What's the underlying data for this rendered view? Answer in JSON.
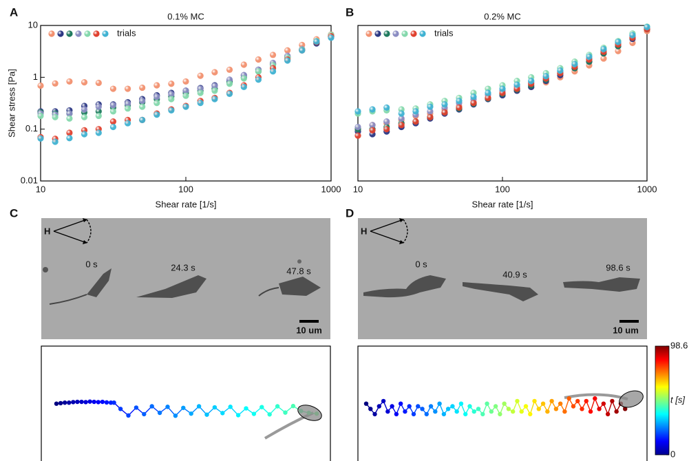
{
  "chart_data": [
    {
      "type": "scatter",
      "panel": "A",
      "title": "0.1% MC",
      "xlabel": "Shear rate [1/s]",
      "ylabel": "Shear stress [Pa]",
      "xscale": "log",
      "yscale": "log",
      "xlim": [
        10,
        1000
      ],
      "ylim": [
        0.01,
        10
      ],
      "xticks": [
        10,
        100,
        1000
      ],
      "yticks": [
        0.01,
        0.1,
        1,
        10
      ],
      "legend_label": "trials",
      "x": [
        10,
        12.6,
        15.8,
        20,
        25.1,
        31.6,
        39.8,
        50.1,
        63.1,
        79.4,
        100,
        126,
        158,
        200,
        251,
        316,
        398,
        501,
        631,
        794,
        1000
      ],
      "series": [
        {
          "color": "#f2906e",
          "values": [
            0.69,
            0.76,
            0.83,
            0.8,
            0.78,
            0.6,
            0.6,
            0.63,
            0.7,
            0.75,
            0.83,
            1.07,
            1.25,
            1.4,
            1.75,
            2.2,
            2.7,
            3.3,
            4.2,
            5.4,
            6.7
          ]
        },
        {
          "color": "#2b3783",
          "values": [
            0.22,
            0.22,
            0.23,
            0.28,
            0.3,
            0.3,
            0.33,
            0.38,
            0.45,
            0.5,
            0.55,
            0.62,
            0.7,
            0.85,
            1.1,
            1.4,
            1.8,
            2.5,
            3.4,
            4.5,
            6
          ]
        },
        {
          "color": "#1f7a5e",
          "values": [
            0.21,
            0.2,
            0.2,
            0.21,
            0.22,
            0.26,
            0.29,
            0.33,
            0.38,
            0.43,
            0.5,
            0.55,
            0.6,
            0.8,
            1.0,
            1.3,
            1.8,
            2.4,
            3.4,
            4.8,
            6.2
          ]
        },
        {
          "color": "#8a8cc2",
          "values": [
            0.2,
            0.19,
            0.2,
            0.24,
            0.27,
            0.29,
            0.31,
            0.35,
            0.42,
            0.47,
            0.55,
            0.6,
            0.68,
            0.9,
            1.1,
            1.4,
            1.9,
            2.6,
            3.5,
            4.9,
            6
          ]
        },
        {
          "color": "#84d8ac",
          "values": [
            0.18,
            0.17,
            0.16,
            0.17,
            0.18,
            0.22,
            0.25,
            0.27,
            0.32,
            0.38,
            0.44,
            0.5,
            0.55,
            0.75,
            0.95,
            1.3,
            1.7,
            2.4,
            3.4,
            5,
            6.6
          ]
        },
        {
          "color": "#e0402e",
          "values": [
            0.07,
            0.065,
            0.085,
            0.095,
            0.1,
            0.14,
            0.15,
            0.15,
            0.2,
            0.24,
            0.28,
            0.35,
            0.4,
            0.5,
            0.7,
            1.0,
            1.5,
            2.2,
            3.3,
            4.8,
            6.2
          ]
        },
        {
          "color": "#3fb2d2",
          "values": [
            0.066,
            0.057,
            0.067,
            0.08,
            0.085,
            0.11,
            0.13,
            0.15,
            0.19,
            0.23,
            0.27,
            0.32,
            0.38,
            0.48,
            0.65,
            0.9,
            1.3,
            2.1,
            3.3,
            4.9,
            5.8
          ]
        }
      ]
    },
    {
      "type": "scatter",
      "panel": "B",
      "title": "0.2% MC",
      "xlabel": "Shear rate [1/s]",
      "xscale": "log",
      "yscale": "log",
      "xlim": [
        10,
        1000
      ],
      "ylim": [
        0.01,
        10
      ],
      "xticks": [
        10,
        100,
        1000
      ],
      "legend_label": "trials",
      "x": [
        10,
        12.6,
        15.8,
        20,
        25.1,
        31.6,
        39.8,
        50.1,
        63.1,
        79.4,
        100,
        126,
        158,
        200,
        251,
        316,
        398,
        501,
        631,
        794,
        1000
      ],
      "series": [
        {
          "color": "#f2906e",
          "values": [
            0.1,
            0.12,
            0.13,
            0.15,
            0.18,
            0.2,
            0.24,
            0.28,
            0.33,
            0.4,
            0.47,
            0.55,
            0.65,
            0.8,
            1.0,
            1.3,
            1.7,
            2.3,
            3.2,
            4.6,
            7.8
          ]
        },
        {
          "color": "#2b3783",
          "values": [
            0.09,
            0.08,
            0.09,
            0.11,
            0.13,
            0.16,
            0.2,
            0.24,
            0.3,
            0.38,
            0.45,
            0.55,
            0.65,
            0.85,
            1.1,
            1.5,
            2.0,
            2.9,
            4.0,
            5.5,
            8.5
          ]
        },
        {
          "color": "#1f7a5e",
          "values": [
            0.1,
            0.1,
            0.11,
            0.13,
            0.14,
            0.17,
            0.21,
            0.25,
            0.31,
            0.39,
            0.48,
            0.58,
            0.7,
            0.9,
            1.2,
            1.5,
            2.0,
            2.9,
            4.0,
            5.8,
            8.5
          ]
        },
        {
          "color": "#8a8cc2",
          "values": [
            0.11,
            0.12,
            0.14,
            0.16,
            0.19,
            0.22,
            0.26,
            0.32,
            0.38,
            0.46,
            0.55,
            0.66,
            0.8,
            1.0,
            1.3,
            1.7,
            2.3,
            3.3,
            4.6,
            6.2,
            8.8
          ]
        },
        {
          "color": "#84d8ac",
          "values": [
            0.2,
            0.22,
            0.23,
            0.24,
            0.25,
            0.3,
            0.35,
            0.4,
            0.5,
            0.6,
            0.7,
            0.85,
            1.0,
            1.2,
            1.5,
            2.0,
            2.7,
            3.7,
            5.0,
            7,
            9.5
          ]
        },
        {
          "color": "#e0402e",
          "values": [
            0.075,
            0.095,
            0.1,
            0.12,
            0.14,
            0.17,
            0.21,
            0.26,
            0.32,
            0.4,
            0.5,
            0.6,
            0.75,
            0.95,
            1.2,
            1.6,
            2.2,
            3.1,
            4.3,
            5.8,
            8.5
          ]
        },
        {
          "color": "#3fb2d2",
          "values": [
            0.22,
            0.24,
            0.26,
            0.2,
            0.22,
            0.27,
            0.3,
            0.35,
            0.42,
            0.5,
            0.6,
            0.72,
            0.85,
            1.05,
            1.35,
            1.8,
            2.5,
            3.5,
            4.8,
            6.5,
            9.3
          ]
        }
      ]
    },
    {
      "type": "trajectory",
      "panel": "C",
      "annotation": "H",
      "scale_bar": "10 um",
      "frames": [
        {
          "t": 0,
          "label": "0 s"
        },
        {
          "t": 24.3,
          "label": "24.3 s"
        },
        {
          "t": 47.8,
          "label": "47.8 s"
        }
      ],
      "trajectory": {
        "x": [
          0,
          1.6,
          3.2,
          4.8,
          6.4,
          8,
          9.6,
          11.2,
          12.8,
          14.4,
          16,
          17.6,
          19.2,
          20.8,
          22,
          24.5,
          27.5,
          30.5,
          33.5,
          36.5,
          39.5,
          42.5,
          45.5,
          48.5,
          51.5,
          54.5,
          57.5,
          60.5,
          63.5,
          66.5,
          69.5,
          72.5,
          75.5,
          78.5,
          81.5,
          84.5,
          87.5,
          90.5,
          93.5,
          96.5,
          99.5
        ],
        "y": [
          -4,
          -3.8,
          -3.6,
          -3.6,
          -3.4,
          -3.3,
          -3.3,
          -3.4,
          -3.2,
          -3.3,
          -3.4,
          -3.3,
          -3.5,
          -3.6,
          -3.6,
          -6,
          -8.5,
          -5.5,
          -8,
          -5,
          -7.5,
          -5.2,
          -8.6,
          -5.6,
          -7.8,
          -5,
          -8.2,
          -5.4,
          -7.6,
          -5.2,
          -8.4,
          -5.8,
          -7.9,
          -5.3,
          -8.1,
          -5,
          -7.4,
          -4.9,
          -6.8,
          -7.5,
          -7.8
        ]
      }
    },
    {
      "type": "trajectory",
      "panel": "D",
      "annotation": "H",
      "scale_bar": "10 um",
      "frames": [
        {
          "t": 0,
          "label": "0 s"
        },
        {
          "t": 40.9,
          "label": "40.9 s"
        },
        {
          "t": 98.6,
          "label": "98.6 s"
        }
      ],
      "trajectory": {
        "x": [
          0,
          1.65,
          3.3,
          4.95,
          6.6,
          8.25,
          9.9,
          11.55,
          13.2,
          14.85,
          16.5,
          18.15,
          19.8,
          21.45,
          23.1,
          24.75,
          26.4,
          28.05,
          29.7,
          31.35,
          33,
          34.65,
          36.3,
          37.95,
          39.6,
          41.25,
          42.9,
          44.55,
          46.2,
          47.85,
          49.5,
          51.15,
          52.8,
          54.45,
          56.1,
          57.75,
          59.4,
          61.05,
          62.7,
          64.35,
          66,
          67.65,
          69.3,
          70.95,
          72.6,
          74.25,
          75.9,
          77.55,
          79.2,
          80.85,
          82.5,
          84.15,
          85.8,
          87.45,
          89.1,
          90.75,
          92.4,
          94.05,
          95.7,
          97.35,
          99
        ],
        "y": [
          -4,
          -6,
          -8,
          -5,
          -3,
          -7,
          -5,
          -8,
          -4,
          -7,
          -5,
          -8,
          -5,
          -6,
          -8,
          -5,
          -7,
          -4,
          -8,
          -6,
          -5,
          -7,
          -4,
          -8,
          -5,
          -7,
          -6,
          -8,
          -4,
          -7,
          -5,
          -8,
          -4,
          -6,
          -7,
          -3,
          -7,
          -5,
          -8,
          -3,
          -6,
          -4,
          -7,
          -3,
          -6,
          -4,
          -7,
          -2,
          -5,
          -3,
          -6,
          -3,
          -7,
          -2,
          -6,
          -4,
          -8,
          -3,
          -7,
          -4,
          -6
        ]
      },
      "colorbar": {
        "label": "t [s]",
        "ticks": [
          0,
          98.6
        ]
      }
    }
  ]
}
